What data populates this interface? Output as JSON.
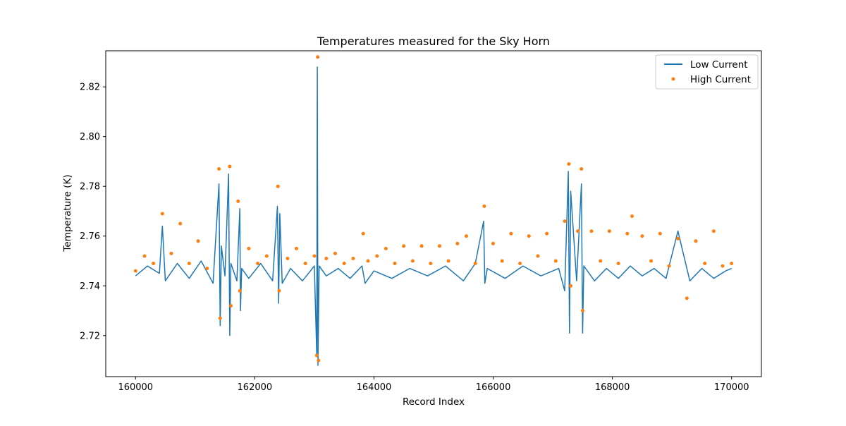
{
  "chart_data": {
    "type": "line",
    "title": "Temperatures measured for the Sky Horn",
    "xlabel": "Record Index",
    "ylabel": "Temperature (K)",
    "xlim": [
      159500,
      170500
    ],
    "ylim": [
      2.7035,
      2.8345
    ],
    "xticks": [
      160000,
      162000,
      164000,
      166000,
      168000,
      170000
    ],
    "yticks": [
      2.72,
      2.74,
      2.76,
      2.78,
      2.8,
      2.82
    ],
    "xtick_labels": [
      "160000",
      "162000",
      "164000",
      "166000",
      "168000",
      "170000"
    ],
    "ytick_labels": [
      "2.72",
      "2.74",
      "2.76",
      "2.78",
      "2.80",
      "2.82"
    ],
    "grid": false,
    "legend_position": "upper right",
    "series": [
      {
        "name": "Low Current",
        "kind": "line",
        "color": "#1f77b4",
        "x": [
          160000,
          160200,
          160400,
          160450,
          160500,
          160700,
          160900,
          161100,
          161300,
          161400,
          161420,
          161440,
          161500,
          161560,
          161580,
          161600,
          161700,
          161750,
          161760,
          161780,
          161900,
          162100,
          162300,
          162380,
          162400,
          162420,
          162460,
          162600,
          162800,
          163000,
          163040,
          163050,
          163060,
          163080,
          163200,
          163400,
          163600,
          163800,
          163850,
          164000,
          164300,
          164600,
          164900,
          165200,
          165500,
          165700,
          165840,
          165860,
          165900,
          166200,
          166500,
          166800,
          167100,
          167200,
          167260,
          167280,
          167300,
          167400,
          167480,
          167500,
          167520,
          167700,
          167900,
          168100,
          168300,
          168500,
          168700,
          168900,
          169100,
          169300,
          169500,
          169700,
          169900,
          170000
        ],
        "y": [
          2.744,
          2.748,
          2.745,
          2.764,
          2.742,
          2.749,
          2.743,
          2.75,
          2.741,
          2.781,
          2.724,
          2.756,
          2.744,
          2.785,
          2.72,
          2.749,
          2.742,
          2.771,
          2.73,
          2.747,
          2.743,
          2.749,
          2.742,
          2.772,
          2.733,
          2.769,
          2.741,
          2.747,
          2.742,
          2.748,
          2.712,
          2.828,
          2.708,
          2.748,
          2.744,
          2.747,
          2.743,
          2.748,
          2.741,
          2.746,
          2.743,
          2.747,
          2.744,
          2.748,
          2.742,
          2.749,
          2.766,
          2.741,
          2.747,
          2.743,
          2.748,
          2.744,
          2.747,
          2.738,
          2.786,
          2.721,
          2.778,
          2.742,
          2.781,
          2.721,
          2.748,
          2.742,
          2.747,
          2.743,
          2.748,
          2.744,
          2.747,
          2.743,
          2.762,
          2.742,
          2.747,
          2.743,
          2.746,
          2.747
        ]
      },
      {
        "name": "High Current",
        "kind": "scatter",
        "color": "#ff7f0e",
        "x": [
          160000,
          160150,
          160300,
          160450,
          160600,
          160750,
          160900,
          161050,
          161200,
          161400,
          161420,
          161580,
          161600,
          161720,
          161750,
          161900,
          162050,
          162200,
          162390,
          162410,
          162550,
          162700,
          162850,
          163000,
          163040,
          163055,
          163070,
          163200,
          163350,
          163500,
          163650,
          163820,
          163900,
          164050,
          164200,
          164350,
          164500,
          164650,
          164800,
          164950,
          165100,
          165250,
          165400,
          165550,
          165700,
          165850,
          166000,
          166150,
          166300,
          166450,
          166600,
          166750,
          166900,
          167050,
          167200,
          167270,
          167300,
          167420,
          167480,
          167500,
          167650,
          167800,
          167950,
          168100,
          168250,
          168330,
          168500,
          168650,
          168800,
          168950,
          169100,
          169250,
          169400,
          169550,
          169700,
          169850,
          170000
        ],
        "y": [
          2.746,
          2.752,
          2.749,
          2.769,
          2.753,
          2.765,
          2.749,
          2.758,
          2.747,
          2.787,
          2.727,
          2.788,
          2.732,
          2.774,
          2.738,
          2.755,
          2.749,
          2.752,
          2.78,
          2.738,
          2.751,
          2.755,
          2.749,
          2.752,
          2.712,
          2.832,
          2.71,
          2.751,
          2.753,
          2.749,
          2.751,
          2.761,
          2.75,
          2.752,
          2.755,
          2.749,
          2.756,
          2.75,
          2.756,
          2.749,
          2.756,
          2.75,
          2.757,
          2.76,
          2.749,
          2.772,
          2.757,
          2.75,
          2.761,
          2.749,
          2.76,
          2.752,
          2.761,
          2.75,
          2.766,
          2.789,
          2.74,
          2.762,
          2.787,
          2.73,
          2.762,
          2.75,
          2.762,
          2.749,
          2.761,
          2.768,
          2.76,
          2.75,
          2.761,
          2.748,
          2.759,
          2.735,
          2.758,
          2.749,
          2.762,
          2.748,
          2.749
        ]
      }
    ]
  }
}
